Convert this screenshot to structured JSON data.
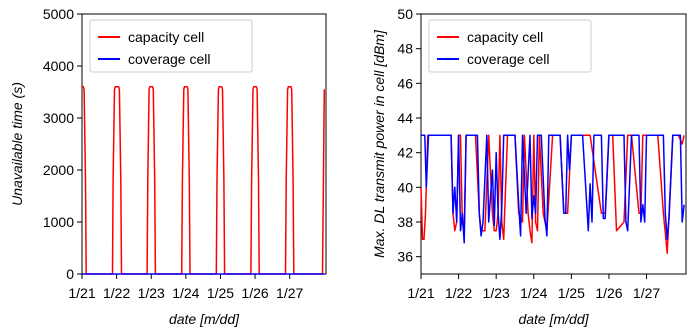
{
  "chart_data": [
    {
      "type": "line",
      "xlabel": "date [m/dd]",
      "ylabel": "Unavailable time (s)",
      "xlim": [
        0,
        7.05
      ],
      "ylim": [
        0,
        5000
      ],
      "yticks": [
        0,
        1000,
        2000,
        3000,
        4000,
        5000
      ],
      "xtick_values": [
        0,
        1,
        2,
        3,
        4,
        5,
        6
      ],
      "xtick_labels": [
        "1/21",
        "1/22",
        "1/23",
        "1/24",
        "1/25",
        "1/26",
        "1/27"
      ],
      "grid": false,
      "legend_position": "top-left",
      "series": [
        {
          "name": "capacity cell",
          "color": "#ff0000",
          "x": [
            0,
            0.04,
            0.06,
            0.1,
            0.12,
            0.88,
            0.9,
            0.94,
            0.96,
            1.06,
            1.08,
            1.12,
            1.14,
            1.88,
            1.9,
            1.94,
            1.96,
            2.04,
            2.06,
            2.1,
            2.12,
            2.88,
            2.9,
            2.94,
            2.96,
            3.04,
            3.06,
            3.1,
            3.12,
            3.88,
            3.9,
            3.94,
            3.96,
            4.04,
            4.06,
            4.1,
            4.12,
            4.88,
            4.9,
            4.94,
            4.96,
            5.04,
            5.06,
            5.1,
            5.12,
            5.88,
            5.9,
            5.94,
            5.96,
            6.04,
            6.06,
            6.1,
            6.12,
            6.95,
            7.0
          ],
          "y": [
            3600,
            3600,
            3550,
            1800,
            0,
            0,
            1800,
            3550,
            3600,
            3600,
            3550,
            1800,
            0,
            0,
            1800,
            3550,
            3600,
            3600,
            3550,
            1800,
            0,
            0,
            1800,
            3550,
            3600,
            3600,
            3550,
            1800,
            0,
            0,
            1800,
            3550,
            3600,
            3600,
            3550,
            1800,
            0,
            0,
            1800,
            3550,
            3600,
            3600,
            3550,
            1800,
            0,
            0,
            1800,
            3550,
            3600,
            3600,
            3550,
            1800,
            0,
            0,
            3550
          ]
        },
        {
          "name": "coverage cell",
          "color": "#0000ff",
          "x": [
            0,
            7.0
          ],
          "y": [
            0,
            0
          ]
        }
      ]
    },
    {
      "type": "line",
      "xlabel": "date [m/dd]",
      "ylabel": "Max. DL transmit power in cell [dBm]",
      "xlim": [
        0,
        7.05
      ],
      "ylim": [
        35,
        50
      ],
      "yticks": [
        36,
        38,
        40,
        42,
        44,
        46,
        48,
        50
      ],
      "xtick_values": [
        0,
        1,
        2,
        3,
        4,
        5,
        6
      ],
      "xtick_labels": [
        "1/21",
        "1/22",
        "1/23",
        "1/24",
        "1/25",
        "1/26",
        "1/27"
      ],
      "grid": false,
      "legend_position": "top-left",
      "series": [
        {
          "name": "capacity cell",
          "color": "#ff0000",
          "x": [
            0,
            0.04,
            0.08,
            0.12,
            0.18,
            0.3,
            0.5,
            0.8,
            0.85,
            0.9,
            0.95,
            1.0,
            1.05,
            1.1,
            1.15,
            1.2,
            1.3,
            1.45,
            1.55,
            1.6,
            1.7,
            1.8,
            1.9,
            1.95,
            2.0,
            2.05,
            2.1,
            2.15,
            2.2,
            2.3,
            2.4,
            2.5,
            2.6,
            2.7,
            2.75,
            2.85,
            2.9,
            2.95,
            3.0,
            3.05,
            3.1,
            3.15,
            3.25,
            3.35,
            3.5,
            3.6,
            3.7,
            3.8,
            3.9,
            4.0,
            4.3,
            4.5,
            4.8,
            4.9,
            5.0,
            5.1,
            5.2,
            5.4,
            5.5,
            5.6,
            5.8,
            5.85,
            5.9,
            6.0,
            6.3,
            6.45,
            6.55,
            6.7,
            6.85,
            6.95,
            7.0
          ],
          "y": [
            40,
            37,
            37,
            38.5,
            43,
            43,
            43,
            43,
            38.5,
            37.5,
            38,
            43,
            43,
            38,
            37.5,
            43,
            43,
            43,
            38.5,
            37.5,
            37.5,
            43,
            38.5,
            37.5,
            37.5,
            38.5,
            43,
            38,
            37,
            43,
            43,
            43,
            38.5,
            38,
            43,
            38.5,
            37.5,
            36.8,
            43,
            38,
            37.5,
            43,
            38.5,
            37.5,
            43,
            43,
            43,
            38.5,
            38.5,
            43,
            43,
            43,
            38.5,
            38.5,
            43,
            43,
            37.5,
            38,
            43,
            43,
            38.5,
            38.5,
            43,
            43,
            43,
            38.5,
            36.2,
            43,
            43,
            42.5,
            43
          ]
        },
        {
          "name": "coverage cell",
          "color": "#0000ff",
          "x": [
            0,
            0.1,
            0.14,
            0.2,
            0.5,
            0.8,
            0.85,
            0.9,
            0.95,
            1.0,
            1.05,
            1.1,
            1.15,
            1.2,
            1.3,
            1.5,
            1.55,
            1.6,
            1.65,
            1.75,
            1.8,
            1.9,
            1.95,
            2.0,
            2.05,
            2.1,
            2.15,
            2.2,
            2.3,
            2.5,
            2.6,
            2.65,
            2.7,
            2.8,
            2.9,
            2.95,
            3.0,
            3.05,
            3.1,
            3.2,
            3.3,
            3.35,
            3.4,
            3.5,
            3.6,
            3.7,
            3.8,
            3.85,
            3.9,
            3.95,
            4.0,
            4.3,
            4.45,
            4.5,
            4.55,
            4.6,
            4.7,
            4.8,
            4.85,
            4.9,
            5.0,
            5.3,
            5.4,
            5.45,
            5.5,
            5.6,
            5.8,
            5.85,
            5.9,
            5.95,
            6.0,
            6.3,
            6.4,
            6.45,
            6.5,
            6.55,
            6.6,
            6.7,
            6.9,
            6.95,
            7.0
          ],
          "y": [
            43,
            43,
            40,
            43,
            43,
            43,
            38.5,
            40,
            38,
            43,
            37.5,
            38.5,
            36.8,
            43,
            43,
            43,
            38.5,
            37.2,
            38,
            43,
            38,
            41,
            37.8,
            42,
            38.5,
            37,
            38.8,
            43,
            43,
            43,
            39,
            37.2,
            43,
            38.5,
            43,
            38.2,
            39.5,
            38.5,
            43,
            43,
            38.2,
            37.2,
            43,
            43,
            43,
            43,
            38.5,
            38.5,
            43,
            41,
            43,
            43,
            37.5,
            40.2,
            38,
            43,
            43,
            43,
            38.2,
            38.2,
            43,
            43,
            43,
            38,
            37.5,
            43,
            43,
            38,
            39,
            38,
            43,
            43,
            43,
            43,
            38.5,
            37,
            38.3,
            43,
            43,
            38,
            39
          ]
        }
      ]
    }
  ]
}
